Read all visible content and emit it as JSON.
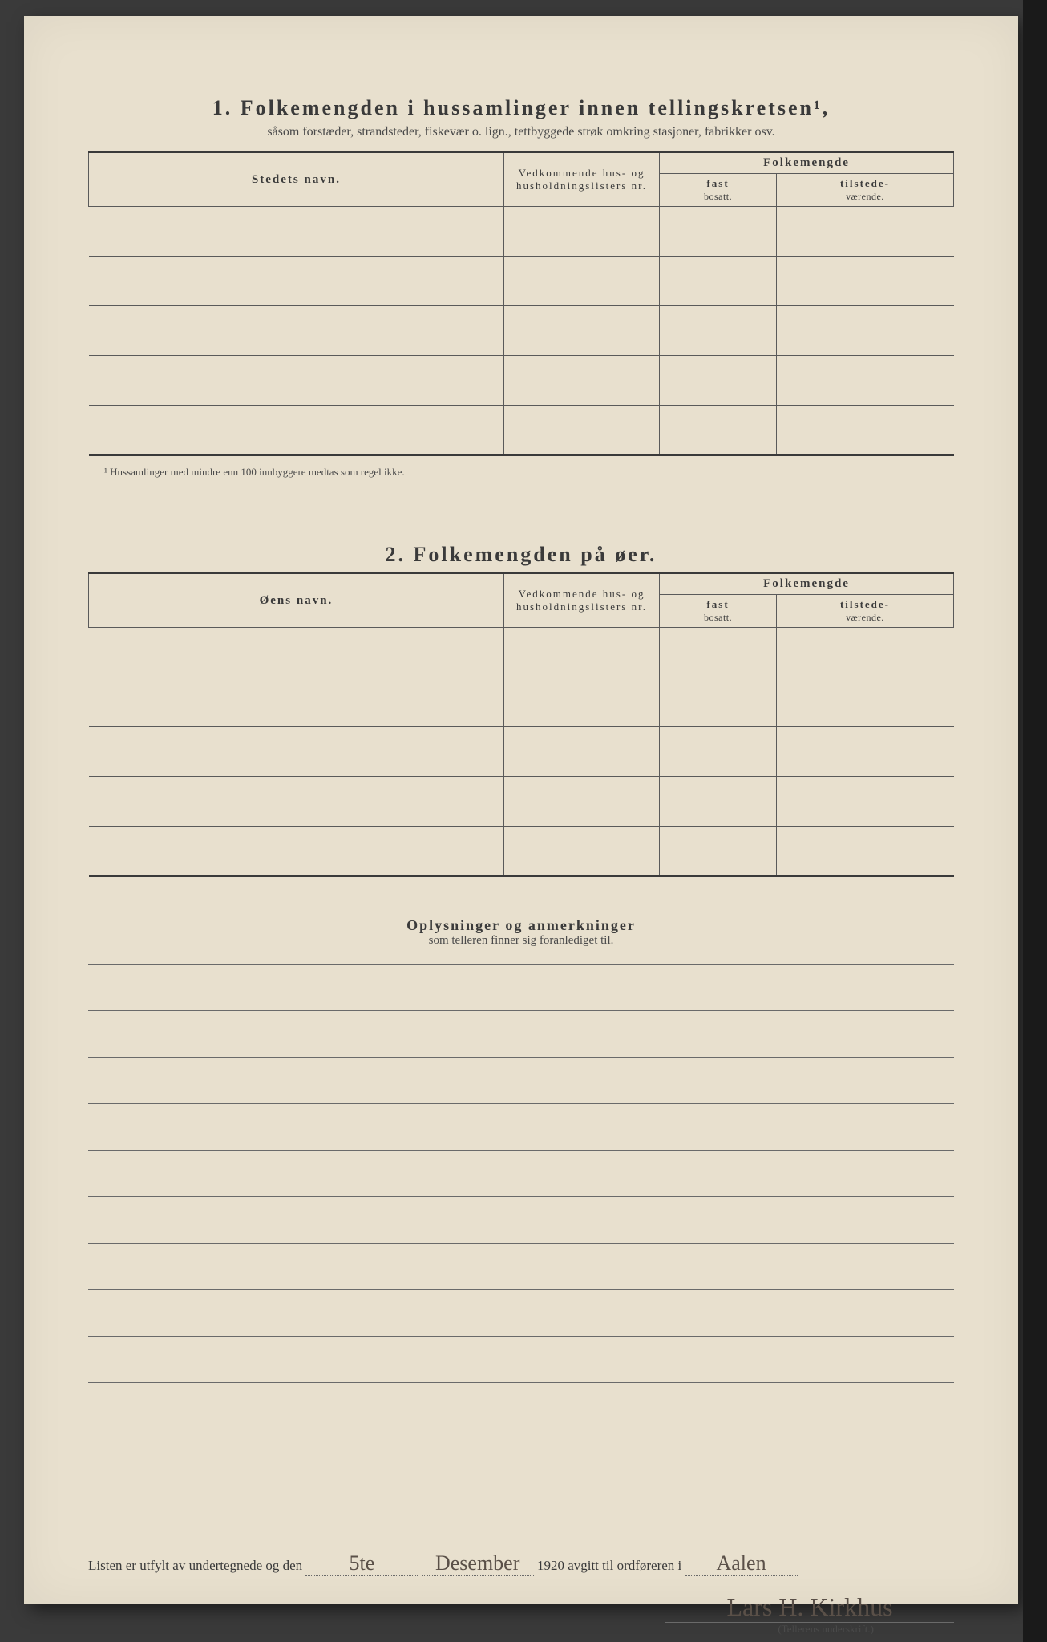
{
  "section1": {
    "number": "1.",
    "title": "Folkemengden i hussamlinger innen tellingskretsen¹,",
    "subtitle": "såsom forstæder, strandsteder, fiskevær o. lign., tettbyggede strøk omkring stasjoner, fabrikker osv.",
    "columns": {
      "name": "Stedets navn.",
      "lists": "Vedkommende hus- og husholdningslisters nr.",
      "pop_header": "Folkemengde",
      "pop_fast": "fast",
      "pop_fast_sub": "bosatt.",
      "pop_tilstede": "tilstede-",
      "pop_tilstede_sub": "værende."
    },
    "rows": [
      "",
      "",
      "",
      "",
      ""
    ],
    "footnote": "¹ Hussamlinger med mindre enn 100 innbyggere medtas som regel ikke."
  },
  "section2": {
    "number": "2.",
    "title": "Folkemengden på øer.",
    "columns": {
      "name": "Øens navn.",
      "lists": "Vedkommende hus- og husholdningslisters nr.",
      "pop_header": "Folkemengde",
      "pop_fast": "fast",
      "pop_fast_sub": "bosatt.",
      "pop_tilstede": "tilstede-",
      "pop_tilstede_sub": "værende."
    },
    "rows": [
      "",
      "",
      "",
      "",
      ""
    ]
  },
  "remarks": {
    "title": "Oplysninger og anmerkninger",
    "subtitle": "som telleren finner sig foranlediget til.",
    "line_count": 9
  },
  "signature": {
    "prefix": "Listen er utfylt av undertegnede og den",
    "date_day": "5te",
    "date_month": "Desember",
    "year": "1920",
    "mid": "avgitt til ordføreren i",
    "place": "Aalen",
    "name": "Lars H. Kirkhus",
    "caption": "(Tellerens underskrift.)"
  },
  "colors": {
    "paper": "#e8e0ce",
    "ink": "#3a3a3a",
    "rule": "#5a5a5a",
    "hand": "#5a5048",
    "background": "#3a3a3a"
  }
}
